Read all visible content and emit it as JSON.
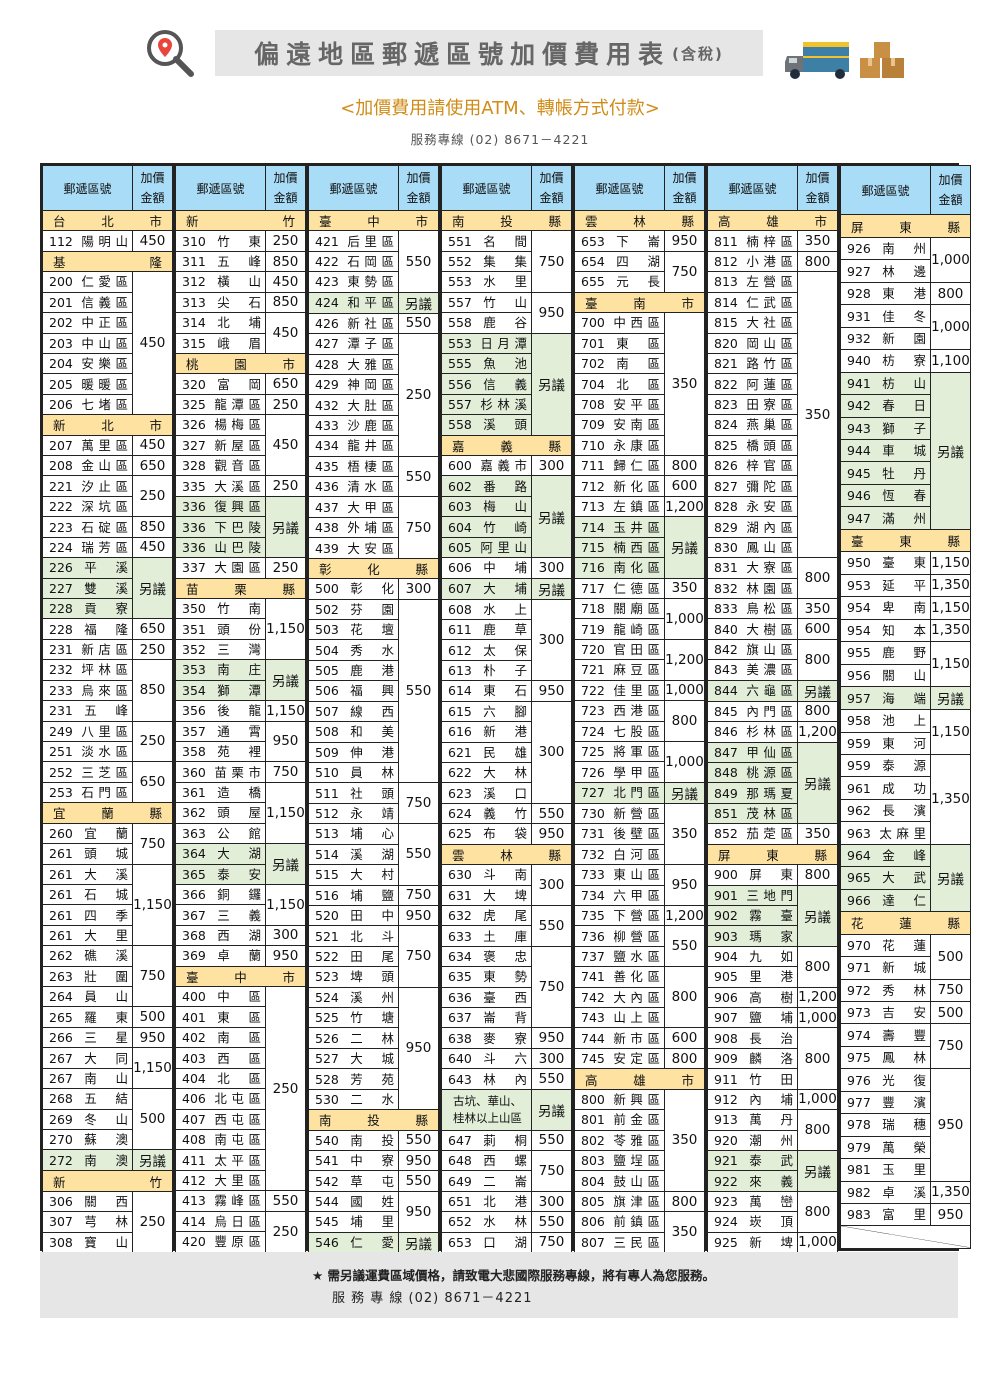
{
  "header": {
    "title": "偏遠地區郵遞區號加價費用表",
    "title_suffix": "(含稅)",
    "subtitle": "<加價費用請使用ATM、轉帳方式付款>",
    "service_line": "服務專線 (02) 8671－4221",
    "icons": [
      "search-location-icon",
      "truck-icon",
      "boxes-icon"
    ]
  },
  "table_header": {
    "zone": "郵遞區號",
    "price_line1": "加價",
    "price_line2": "金額"
  },
  "colors": {
    "header_bg": "#a9dcf6",
    "city_bg": "#fde2a2",
    "negotiable_bg": "#e3eed9"
  },
  "columns": [
    {
      "rows": [
        {
          "h": "台 北 市"
        },
        [
          "112 陽明山",
          "450"
        ],
        {
          "h": "基 隆"
        },
        [
          "200 仁愛區",
          "450",
          7
        ],
        [
          "201 信義區"
        ],
        [
          "202 中正區"
        ],
        [
          "203 中山區"
        ],
        [
          "204 安樂區"
        ],
        [
          "205 暖暖區"
        ],
        [
          "206 七堵區"
        ],
        {
          "h": "新 北 市"
        },
        [
          "207 萬里區",
          "450"
        ],
        [
          "208 金山區",
          "650"
        ],
        [
          "221 汐止區",
          "250",
          2
        ],
        [
          "222 深坑區"
        ],
        [
          "223 石碇區",
          "850"
        ],
        [
          "224 瑞芳區",
          "450"
        ],
        [
          "226 平 溪",
          "另議",
          3
        ],
        [
          "227 雙 溪"
        ],
        [
          "228 貢 寮"
        ],
        [
          "228 福 隆",
          "650"
        ],
        [
          "231 新店區",
          "250"
        ],
        [
          "232 坪林區",
          "850",
          3
        ],
        [
          "233 烏來區"
        ],
        [
          "231 五 峰"
        ],
        [
          "249 八里區",
          "250",
          2
        ],
        [
          "251 淡水區"
        ],
        [
          "252 三芝區",
          "650",
          2
        ],
        [
          "253 石門區"
        ],
        {
          "h": "宜 蘭 縣"
        },
        [
          "260 宜 蘭",
          "750",
          2
        ],
        [
          "261 頭 城"
        ],
        [
          "261 大 溪",
          "1,150",
          4
        ],
        [
          "261 石 城"
        ],
        [
          "261 四 季"
        ],
        [
          "261 大 里"
        ],
        [
          "262 礁 溪",
          "750",
          3
        ],
        [
          "263 壯 圍"
        ],
        [
          "264 員 山"
        ],
        [
          "265 羅 東",
          "500"
        ],
        [
          "266 三 星",
          "950"
        ],
        [
          "267 大 同",
          "1,150",
          2
        ],
        [
          "267 南 山"
        ],
        [
          "268 五 結",
          "500",
          3
        ],
        [
          "269 冬 山"
        ],
        [
          "270 蘇 澳"
        ],
        [
          "272 南 澳",
          "另議"
        ],
        {
          "h": "新 竹"
        },
        [
          "306 關 西",
          "250",
          3
        ],
        [
          "307 芎 林"
        ],
        [
          "308 寶 山"
        ]
      ]
    },
    {
      "rows": [
        {
          "h": "新 竹"
        },
        [
          "310 竹 東",
          "250"
        ],
        [
          "311 五 峰",
          "850"
        ],
        [
          "312 橫 山",
          "450"
        ],
        [
          "313 尖 石",
          "850"
        ],
        [
          "314 北 埔",
          "450",
          2
        ],
        [
          "315 峨 眉"
        ],
        {
          "h": "桃 園 市"
        },
        [
          "320 富 岡",
          "650"
        ],
        [
          "325 龍潭區",
          "250"
        ],
        [
          "326 楊梅區",
          "450",
          3
        ],
        [
          "327 新屋區"
        ],
        [
          "328 觀音區"
        ],
        [
          "335 大溪區",
          "250"
        ],
        [
          "336 復興區",
          "另議",
          3
        ],
        [
          "336 下巴陵"
        ],
        [
          "336 山巴陵"
        ],
        [
          "337 大園區",
          "250"
        ],
        {
          "h": "苗 栗 縣"
        },
        [
          "350 竹 南",
          "1,150",
          3
        ],
        [
          "351 頭 份"
        ],
        [
          "352 三 灣"
        ],
        [
          "353 南 庄",
          "另議",
          2
        ],
        [
          "354 獅 潭"
        ],
        [
          "356 後 龍",
          "1,150"
        ],
        [
          "357 通 霄",
          "950",
          2
        ],
        [
          "358 苑 裡"
        ],
        [
          "360 苗栗市",
          "750"
        ],
        [
          "361 造 橋",
          "1,150",
          3
        ],
        [
          "362 頭 屋"
        ],
        [
          "363 公 館"
        ],
        [
          "364 大 湖",
          "另議",
          2
        ],
        [
          "365 泰 安"
        ],
        [
          "366 銅 鑼",
          "1,150",
          2
        ],
        [
          "367 三 義"
        ],
        [
          "368 西 湖",
          "300"
        ],
        [
          "369 卓 蘭",
          "950"
        ],
        {
          "h": "臺 中 市"
        },
        [
          "400 中 區",
          "250",
          10
        ],
        [
          "401 東 區"
        ],
        [
          "402 南 區"
        ],
        [
          "403 西 區"
        ],
        [
          "404 北 區"
        ],
        [
          "406 北屯區"
        ],
        [
          "407 西屯區"
        ],
        [
          "408 南屯區"
        ],
        [
          "411 太平區"
        ],
        [
          "412 大里區"
        ],
        [
          "413 霧峰區",
          "550"
        ],
        [
          "414 烏日區",
          "250",
          2
        ],
        [
          "420 豐原區"
        ]
      ]
    },
    {
      "rows": [
        {
          "h": "臺 中 市"
        },
        [
          "421 后里區",
          "550",
          3
        ],
        [
          "422 石岡區"
        ],
        [
          "423 東勢區"
        ],
        [
          "424 和平區",
          "另議"
        ],
        [
          "426 新社區",
          "550"
        ],
        [
          "427 潭子區",
          "250",
          6
        ],
        [
          "428 大雅區"
        ],
        [
          "429 神岡區"
        ],
        [
          "432 大肚區"
        ],
        [
          "433 沙鹿區"
        ],
        [
          "434 龍井區"
        ],
        [
          "435 梧棲區",
          "550",
          2
        ],
        [
          "436 清水區"
        ],
        [
          "437 大甲區",
          "750",
          3
        ],
        [
          "438 外埔區"
        ],
        [
          "439 大安區"
        ],
        {
          "h": "彰 化 縣"
        },
        [
          "500 彰 化",
          "300"
        ],
        [
          "502 芬 園",
          "550",
          9
        ],
        [
          "503 花 壇"
        ],
        [
          "504 秀 水"
        ],
        [
          "505 鹿 港"
        ],
        [
          "506 福 興"
        ],
        [
          "507 線 西"
        ],
        [
          "508 和 美"
        ],
        [
          "509 伸 港"
        ],
        [
          "510 員 林"
        ],
        [
          "511 社 頭",
          "750",
          2
        ],
        [
          "512 永 靖"
        ],
        [
          "513 埔 心",
          "550",
          3
        ],
        [
          "514 溪 湖"
        ],
        [
          "515 大 村"
        ],
        [
          "516 埔 鹽",
          "750"
        ],
        [
          "520 田 中",
          "950"
        ],
        [
          "521 北 斗",
          "750",
          3
        ],
        [
          "522 田 尾"
        ],
        [
          "523 埤 頭"
        ],
        [
          "524 溪 州",
          "950",
          6
        ],
        [
          "525 竹 塘"
        ],
        [
          "526 二 林"
        ],
        [
          "527 大 城"
        ],
        [
          "528 芳 苑"
        ],
        [
          "530 二 水"
        ],
        {
          "h": "南 投 縣"
        },
        [
          "540 南 投",
          "550"
        ],
        [
          "541 中 寮",
          "950"
        ],
        [
          "542 草 屯",
          "550"
        ],
        [
          "544 國 姓",
          "950",
          2
        ],
        [
          "545 埔 里"
        ],
        [
          "546 仁 愛",
          "另議"
        ]
      ]
    },
    {
      "rows": [
        {
          "h": "南 投 縣"
        },
        [
          "551 名 間",
          "750",
          3
        ],
        [
          "552 集 集"
        ],
        [
          "553 水 里"
        ],
        [
          "557 竹 山",
          "950",
          2
        ],
        [
          "558 鹿 谷"
        ],
        [
          "553 日月潭",
          "另議",
          5
        ],
        [
          "555 魚 池"
        ],
        [
          "556 信 義"
        ],
        [
          "557 杉林溪"
        ],
        [
          "558 溪 頭"
        ],
        {
          "h": "嘉 義 縣"
        },
        [
          "600 嘉義市",
          "300"
        ],
        [
          "602 番 路",
          "另議",
          4
        ],
        [
          "603 梅 山"
        ],
        [
          "604 竹 崎"
        ],
        [
          "605 阿里山"
        ],
        [
          "606 中 埔",
          "300"
        ],
        [
          "607 大 埔",
          "另議"
        ],
        [
          "608 水 上",
          "300",
          4
        ],
        [
          "611 鹿 草"
        ],
        [
          "612 太 保"
        ],
        [
          "613 朴 子"
        ],
        [
          "614 東 石",
          "950"
        ],
        [
          "615 六 腳",
          "300",
          5
        ],
        [
          "616 新 港"
        ],
        [
          "621 民 雄"
        ],
        [
          "622 大 林"
        ],
        [
          "623 溪 口"
        ],
        [
          "624 義 竹",
          "550"
        ],
        [
          "625 布 袋",
          "950"
        ],
        {
          "h": "雲 林 縣"
        },
        [
          "630 斗 南",
          "300",
          2
        ],
        [
          "631 大 埤"
        ],
        [
          "632 虎 尾",
          "550",
          2
        ],
        [
          "633 土 庫"
        ],
        [
          "634 褒 忠",
          "750",
          4
        ],
        [
          "635 東 勢"
        ],
        [
          "636 臺 西"
        ],
        [
          "637 崙 背"
        ],
        [
          "638 麥 寮",
          "950"
        ],
        [
          "640 斗 六",
          "300"
        ],
        [
          "643 林 內",
          "550"
        ],
        [
          "古坑、華山、桂林以上山區",
          "另議",
          2,
          2
        ],
        [],
        [
          "647 莿 桐",
          "550"
        ],
        [
          "648 西 螺",
          "750",
          2
        ],
        [
          "649 二 崙"
        ],
        [
          "651 北 港",
          "300"
        ],
        [
          "652 水 林",
          "550"
        ],
        [
          "653 口 湖",
          "750"
        ]
      ]
    },
    {
      "rows": [
        {
          "h": "雲 林 縣"
        },
        [
          "653 下 崙",
          "950"
        ],
        [
          "654 四 湖",
          "750",
          2
        ],
        [
          "655 元 長"
        ],
        {
          "h": "臺 南 市"
        },
        [
          "700 中西區",
          "350",
          7
        ],
        [
          "701 東 區"
        ],
        [
          "702 南 區"
        ],
        [
          "704 北 區"
        ],
        [
          "708 安平區"
        ],
        [
          "709 安南區"
        ],
        [
          "710 永康區"
        ],
        [
          "711 歸仁區",
          "800"
        ],
        [
          "712 新化區",
          "600"
        ],
        [
          "713 左鎮區",
          "1,200"
        ],
        [
          "714 玉井區",
          "另議",
          3
        ],
        [
          "715 楠西區"
        ],
        [
          "716 南化區"
        ],
        [
          "717 仁德區",
          "350"
        ],
        [
          "718 關廟區",
          "1,000",
          2
        ],
        [
          "719 龍崎區"
        ],
        [
          "720 官田區",
          "1,200",
          2
        ],
        [
          "721 麻豆區"
        ],
        [
          "722 佳里區",
          "1,000"
        ],
        [
          "723 西港區",
          "800",
          2
        ],
        [
          "724 七股區"
        ],
        [
          "725 將軍區",
          "1,000",
          2
        ],
        [
          "726 學甲區"
        ],
        [
          "727 北門區",
          "另議"
        ],
        [
          "730 新營區",
          "350",
          3
        ],
        [
          "731 後壁區"
        ],
        [
          "732 白河區"
        ],
        [
          "733 東山區",
          "950",
          2
        ],
        [
          "734 六甲區"
        ],
        [
          "735 下營區",
          "1,200"
        ],
        [
          "736 柳營區",
          "550",
          2
        ],
        [
          "737 鹽水區"
        ],
        [
          "741 善化區",
          "800",
          3
        ],
        [
          "742 大內區"
        ],
        [
          "743 山上區"
        ],
        [
          "744 新市區",
          "600"
        ],
        [
          "745 安定區",
          "800"
        ],
        {
          "h": "高 雄 市"
        },
        [
          "800 新興區",
          "350",
          5
        ],
        [
          "801 前金區"
        ],
        [
          "802 苓雅區"
        ],
        [
          "803 鹽埕區"
        ],
        [
          "804 鼓山區"
        ],
        [
          "805 旗津區",
          "800"
        ],
        [
          "806 前鎮區",
          "350",
          2
        ],
        [
          "807 三民區"
        ]
      ]
    },
    {
      "rows": [
        {
          "h": "高 雄 市"
        },
        [
          "811 楠梓區",
          "350"
        ],
        [
          "812 小港區",
          "800"
        ],
        [
          "813 左營區",
          "350",
          14
        ],
        [
          "814 仁武區"
        ],
        [
          "815 大社區"
        ],
        [
          "820 岡山區"
        ],
        [
          "821 路竹區"
        ],
        [
          "822 阿蓮區"
        ],
        [
          "823 田寮區"
        ],
        [
          "824 燕巢區"
        ],
        [
          "825 橋頭區"
        ],
        [
          "826 梓官區"
        ],
        [
          "827 彌陀區"
        ],
        [
          "828 永安區"
        ],
        [
          "829 湖內區"
        ],
        [
          "830 鳳山區"
        ],
        [
          "831 大寮區",
          "800",
          2
        ],
        [
          "832 林園區"
        ],
        [
          "833 鳥松區",
          "350"
        ],
        [
          "840 大樹區",
          "600"
        ],
        [
          "842 旗山區",
          "800",
          2
        ],
        [
          "843 美濃區"
        ],
        [
          "844 六龜區",
          "另議"
        ],
        [
          "845 內門區",
          "800"
        ],
        [
          "846 杉林區",
          "1,200"
        ],
        [
          "847 甲仙區",
          "另議",
          4
        ],
        [
          "848 桃源區"
        ],
        [
          "849 那瑪夏"
        ],
        [
          "851 茂林區"
        ],
        [
          "852 茄萣區",
          "350"
        ],
        {
          "h": "屏 東 縣"
        },
        [
          "900 屏 東",
          "800"
        ],
        [
          "901 三地門",
          "另議",
          3
        ],
        [
          "902 霧 臺"
        ],
        [
          "903 瑪 家"
        ],
        [
          "904 九 如",
          "800",
          2
        ],
        [
          "905 里 港"
        ],
        [
          "906 高 樹",
          "1,200"
        ],
        [
          "907 鹽 埔",
          "1,000"
        ],
        [
          "908 長 治",
          "800",
          3
        ],
        [
          "909 麟 洛"
        ],
        [
          "911 竹 田"
        ],
        [
          "912 內 埔",
          "1,000"
        ],
        [
          "913 萬 丹",
          "800",
          2
        ],
        [
          "920 潮 州"
        ],
        [
          "921 泰 武",
          "另議",
          2
        ],
        [
          "922 來 義"
        ],
        [
          "923 萬 巒",
          "800",
          2
        ],
        [
          "924 崁 頂"
        ],
        [
          "925 新 埤",
          "1,000"
        ]
      ]
    },
    {
      "rows": [
        {
          "h": "屏 東 縣"
        },
        [
          "926 南 州",
          "1,000",
          2
        ],
        [
          "927 林 邊"
        ],
        [
          "928 東 港",
          "800"
        ],
        [
          "931 佳 冬",
          "1,000",
          2
        ],
        [
          "932 新 園"
        ],
        [
          "940 枋 寮",
          "1,100"
        ],
        [
          "941 枋 山",
          "另議",
          7
        ],
        [
          "942 春 日"
        ],
        [
          "943 獅 子"
        ],
        [
          "944 車 城"
        ],
        [
          "945 牡 丹"
        ],
        [
          "946 恆 春"
        ],
        [
          "947 滿 州"
        ],
        {
          "h": "臺 東 縣"
        },
        [
          "950 臺 東",
          "1,150"
        ],
        [
          "953 延 平",
          "1,350"
        ],
        [
          "954 卑 南",
          "1,150"
        ],
        [
          "954 知 本",
          "1,350"
        ],
        [
          "955 鹿 野",
          "1,150",
          2
        ],
        [
          "956 關 山"
        ],
        [
          "957 海 端",
          "另議"
        ],
        [
          "958 池 上",
          "1,150",
          2
        ],
        [
          "959 東 河"
        ],
        [
          "959 泰 源",
          "1,350",
          4
        ],
        [
          "961 成 功"
        ],
        [
          "962 長 濱"
        ],
        [
          "963 太麻里"
        ],
        [
          "964 金 峰",
          "另議",
          3
        ],
        [
          "965 大 武"
        ],
        [
          "966 達 仁"
        ],
        {
          "h": "花 蓮 縣"
        },
        [
          "970 花 蓮",
          "500",
          2
        ],
        [
          "971 新 城"
        ],
        [
          "972 秀 林",
          "750"
        ],
        [
          "973 吉 安",
          "500"
        ],
        [
          "974 壽 豐",
          "750",
          2
        ],
        [
          "975 鳳 林"
        ],
        [
          "976 光 復",
          "950",
          5
        ],
        [
          "977 豐 濱"
        ],
        [
          "978 瑞 穗"
        ],
        [
          "979 萬 榮"
        ],
        [
          "981 玉 里"
        ],
        [
          "982 卓 溪",
          "1,350"
        ],
        [
          "983 富 里",
          "950"
        ],
        {
          "blank": 6
        }
      ]
    }
  ],
  "footer": {
    "note": "★ 需另議運費區域價格，請致電大悲國際服務專線，將有專人為您服務。",
    "service_line": "服 務 專 線 (02) 8671－4221"
  }
}
